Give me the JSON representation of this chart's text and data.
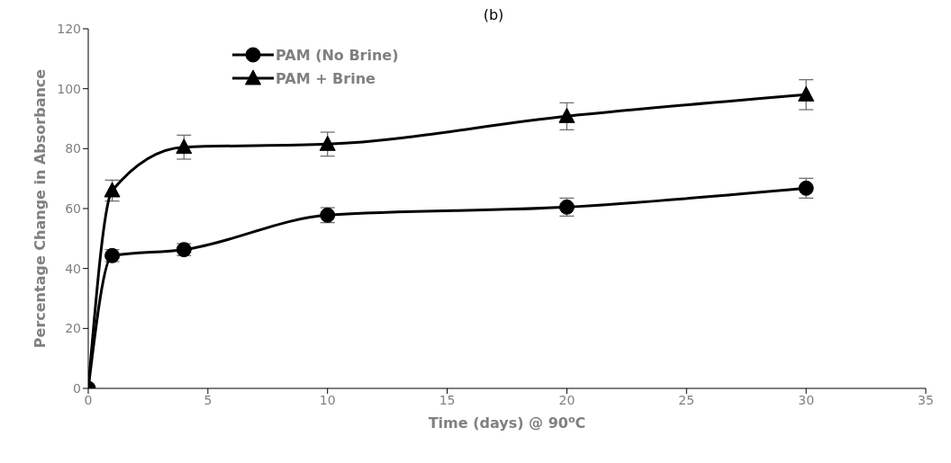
{
  "chart_data": {
    "type": "line",
    "title": "(b)",
    "xlabel": "Time (days) @ 90$^{o}$C",
    "ylabel": "Percentage Change in Absorbance",
    "x": [
      0,
      1,
      4,
      10,
      20,
      30
    ],
    "series": [
      {
        "name": "PAM (No Brine)",
        "color": "#000000",
        "marker": "circle",
        "values": [
          0,
          44.3,
          46.3,
          57.8,
          60.5,
          66.8
        ],
        "errors": [
          null,
          2,
          2,
          2.5,
          3,
          3.3
        ]
      },
      {
        "name": "PAM + Brine",
        "color": "#000000",
        "marker": "triangle",
        "values": [
          0,
          66,
          80.5,
          81.5,
          90.8,
          98
        ],
        "errors": [
          null,
          3.5,
          4,
          4,
          4.5,
          5
        ]
      }
    ],
    "xlim": [
      0,
      35
    ],
    "xticks": [
      0,
      5,
      10,
      15,
      20,
      25,
      30,
      35
    ],
    "ylim": [
      0,
      120
    ],
    "yticks": [
      0,
      20,
      40,
      60,
      80,
      100,
      120
    ],
    "grid": false,
    "legend": "top left",
    "line_style": "solid"
  }
}
